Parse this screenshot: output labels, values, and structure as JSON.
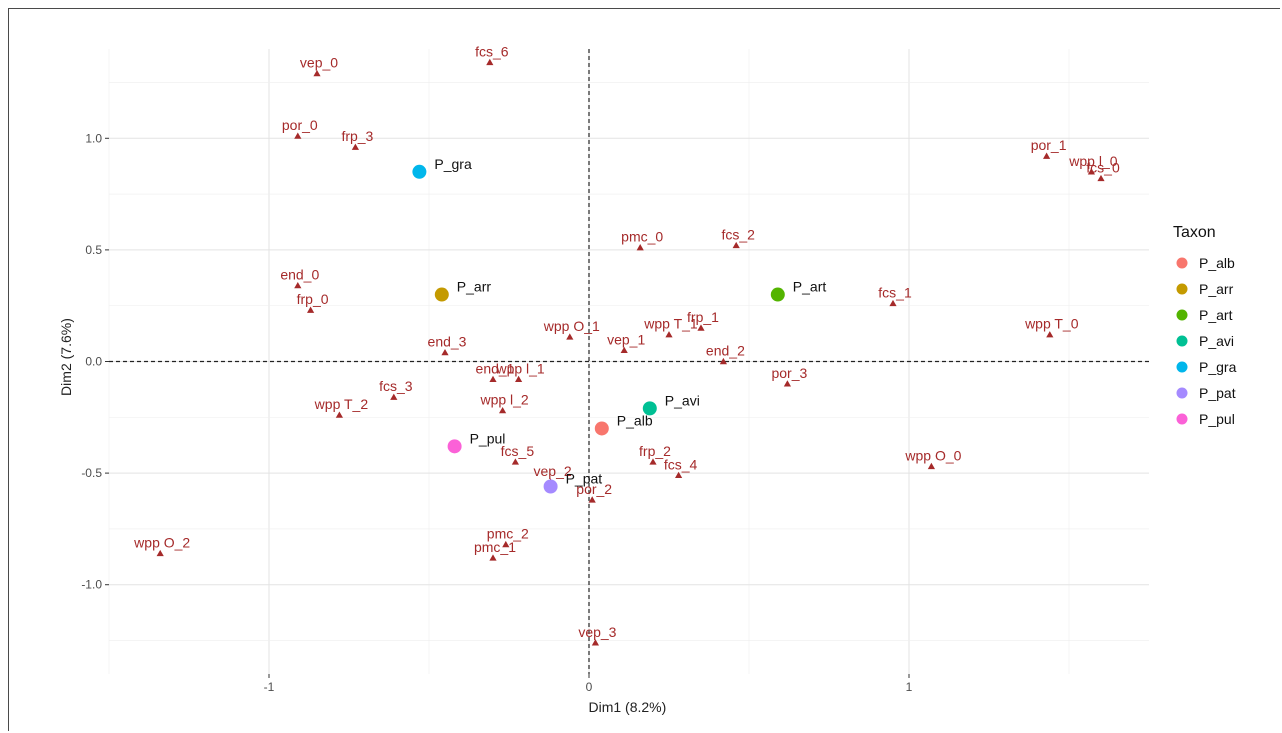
{
  "chart_data": {
    "type": "scatter",
    "xlabel": "Dim1 (8.2%)",
    "ylabel": "Dim2 (7.6%)",
    "xlim": [
      -1.5,
      1.75
    ],
    "ylim": [
      -1.4,
      1.4
    ],
    "x_ticks": [
      -1,
      0,
      1
    ],
    "x_tick_labels": [
      "-1",
      "0",
      "1"
    ],
    "y_ticks": [
      -1.0,
      -0.5,
      0.0,
      0.5,
      1.0
    ],
    "y_tick_labels": [
      "-1.0",
      "-0.5",
      "0.0",
      "0.5",
      "1.0"
    ],
    "grid": true,
    "reference_lines": {
      "x": 0,
      "y": 0,
      "style": "dashed"
    },
    "category_points": {
      "color": "#a52a2a",
      "marker": "triangle",
      "points": [
        {
          "label": "vep_0",
          "x": -0.85,
          "y": 1.29
        },
        {
          "label": "fcs_6",
          "x": -0.31,
          "y": 1.34
        },
        {
          "label": "por_0",
          "x": -0.91,
          "y": 1.01
        },
        {
          "label": "frp_3",
          "x": -0.73,
          "y": 0.96
        },
        {
          "label": "por_1",
          "x": 1.43,
          "y": 0.92
        },
        {
          "label": "wpp l_0",
          "x": 1.57,
          "y": 0.85
        },
        {
          "label": "fcs_0",
          "x": 1.6,
          "y": 0.82
        },
        {
          "label": "pmc_0",
          "x": 0.16,
          "y": 0.51
        },
        {
          "label": "fcs_2",
          "x": 0.46,
          "y": 0.52
        },
        {
          "label": "fcs_1",
          "x": 0.95,
          "y": 0.26
        },
        {
          "label": "end_0",
          "x": -0.91,
          "y": 0.34
        },
        {
          "label": "frp_0",
          "x": -0.87,
          "y": 0.23
        },
        {
          "label": "wpp T_0",
          "x": 1.44,
          "y": 0.12
        },
        {
          "label": "wpp O_1",
          "x": -0.06,
          "y": 0.11
        },
        {
          "label": "frp_1",
          "x": 0.35,
          "y": 0.15
        },
        {
          "label": "end_3",
          "x": -0.45,
          "y": 0.04
        },
        {
          "label": "vep_1",
          "x": 0.11,
          "y": 0.05
        },
        {
          "label": "end_2",
          "x": 0.42,
          "y": 0.0
        },
        {
          "label": "wpp T_1",
          "x": 0.25,
          "y": 0.12
        },
        {
          "label": "end_1",
          "x": -0.3,
          "y": -0.08
        },
        {
          "label": "fcs_3",
          "x": -0.61,
          "y": -0.16
        },
        {
          "label": "wpp l_1",
          "x": -0.22,
          "y": -0.08
        },
        {
          "label": "por_3",
          "x": 0.62,
          "y": -0.1
        },
        {
          "label": "wpp T_2",
          "x": -0.78,
          "y": -0.24
        },
        {
          "label": "wpp l_2",
          "x": -0.27,
          "y": -0.22
        },
        {
          "label": "fcs_5",
          "x": -0.23,
          "y": -0.45
        },
        {
          "label": "frp_2",
          "x": 0.2,
          "y": -0.45
        },
        {
          "label": "fcs_4",
          "x": 0.28,
          "y": -0.51
        },
        {
          "label": "wpp O_0",
          "x": 1.07,
          "y": -0.47
        },
        {
          "label": "vep_2",
          "x": -0.12,
          "y": -0.54
        },
        {
          "label": "por_2",
          "x": 0.01,
          "y": -0.62
        },
        {
          "label": "pmc_2",
          "x": -0.26,
          "y": -0.82
        },
        {
          "label": "pmc_1",
          "x": -0.3,
          "y": -0.88
        },
        {
          "label": "wpp O_2",
          "x": -1.34,
          "y": -0.86
        },
        {
          "label": "vep_3",
          "x": 0.02,
          "y": -1.26
        }
      ]
    },
    "legend": {
      "title": "Taxon",
      "position": "right",
      "entries": [
        {
          "name": "P_alb",
          "color": "#f8766d"
        },
        {
          "name": "P_arr",
          "color": "#c49a00"
        },
        {
          "name": "P_art",
          "color": "#53b400"
        },
        {
          "name": "P_avi",
          "color": "#00c094"
        },
        {
          "name": "P_gra",
          "color": "#00b6eb"
        },
        {
          "name": "P_pat",
          "color": "#a58aff"
        },
        {
          "name": "P_pul",
          "color": "#fb61d7"
        }
      ]
    },
    "series": [
      {
        "name": "P_alb",
        "x": [
          0.04
        ],
        "y": [
          -0.3
        ],
        "color": "#f8766d"
      },
      {
        "name": "P_arr",
        "x": [
          -0.46
        ],
        "y": [
          0.3
        ],
        "color": "#c49a00"
      },
      {
        "name": "P_art",
        "x": [
          0.59
        ],
        "y": [
          0.3
        ],
        "color": "#53b400"
      },
      {
        "name": "P_avi",
        "x": [
          0.19
        ],
        "y": [
          -0.21
        ],
        "color": "#00c094"
      },
      {
        "name": "P_gra",
        "x": [
          -0.53
        ],
        "y": [
          0.85
        ],
        "color": "#00b6eb"
      },
      {
        "name": "P_pat",
        "x": [
          -0.12
        ],
        "y": [
          -0.56
        ],
        "color": "#a58aff"
      },
      {
        "name": "P_pul",
        "x": [
          -0.42
        ],
        "y": [
          -0.38
        ],
        "color": "#fb61d7"
      }
    ]
  }
}
